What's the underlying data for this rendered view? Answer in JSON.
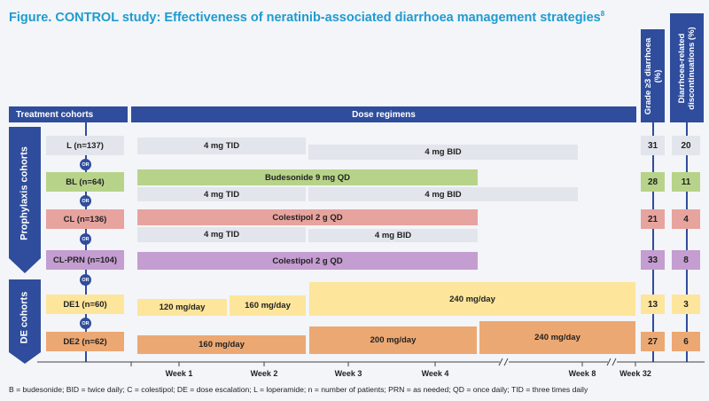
{
  "title": {
    "text": "Figure. CONTROL study: Effectiveness of neratinib-associated diarrhoea management strategies",
    "sup": "8"
  },
  "headers": {
    "cohorts": "Treatment cohorts",
    "regimens": "Dose regimens",
    "grade3": "Grade ≥3 diarrhoea (%)",
    "discont": "Diarrhoea-related discontinuations (%)"
  },
  "groups": {
    "prophylaxis": "Prophylaxis cohorts",
    "de": "DE cohorts"
  },
  "or_label": "OR",
  "cohorts": [
    {
      "label": "L (n=137)",
      "grade3": "31",
      "discont": "20",
      "bars": [
        {
          "label": "4 mg TID"
        },
        {
          "label": "4 mg BID"
        }
      ]
    },
    {
      "label": "BL (n=64)",
      "grade3": "28",
      "discont": "11",
      "bars": [
        {
          "label": "Budesonide 9 mg QD"
        },
        {
          "label": "4 mg TID"
        },
        {
          "label": "4 mg BID"
        }
      ]
    },
    {
      "label": "CL (n=136)",
      "grade3": "21",
      "discont": "4",
      "bars": [
        {
          "label": "Colestipol 2 g QD"
        },
        {
          "label": "4 mg TID"
        },
        {
          "label": "4 mg BID"
        }
      ]
    },
    {
      "label": "CL-PRN (n=104)",
      "grade3": "33",
      "discont": "8",
      "bars": [
        {
          "label": "Colestipol 2 g QD"
        }
      ]
    },
    {
      "label": "DE1 (n=60)",
      "grade3": "13",
      "discont": "3",
      "bars": [
        {
          "label": "120 mg/day"
        },
        {
          "label": "160 mg/day"
        },
        {
          "label": "240 mg/day"
        }
      ]
    },
    {
      "label": "DE2 (n=62)",
      "grade3": "27",
      "discont": "6",
      "bars": [
        {
          "label": "160 mg/day"
        },
        {
          "label": "200 mg/day"
        },
        {
          "label": "240 mg/day"
        }
      ]
    }
  ],
  "axis": {
    "ticks": [
      "Week 1",
      "Week 2",
      "Week 3",
      "Week 4",
      "Week 8",
      "Week 32"
    ]
  },
  "colors": {
    "header": "#2f4d9c",
    "title": "#1f9bd0",
    "grey": "#e2e5ec",
    "green": "#b7d389",
    "red": "#e7a39e",
    "purple": "#c49dd1",
    "yellow": "#fde59b",
    "orange": "#eca873"
  },
  "footer": "B = budesonide; BID = twice daily; C = colestipol; DE = dose escalation; L = loperamide; n = number of patients; PRN = as needed; QD = once daily; TID = three times daily"
}
